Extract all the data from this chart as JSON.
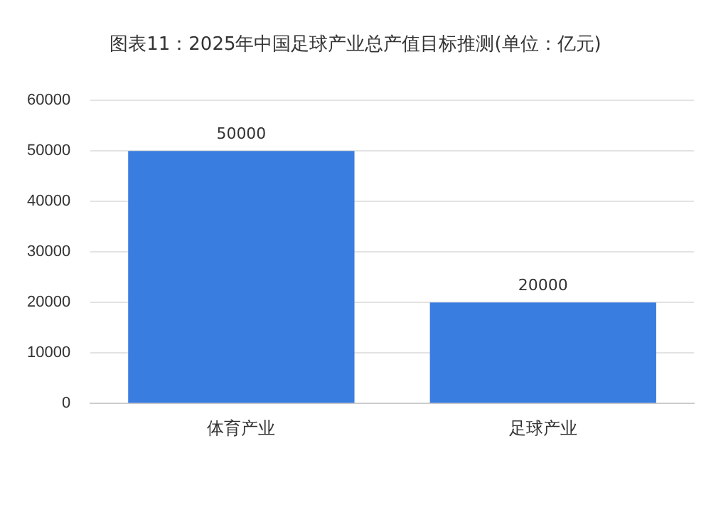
{
  "chart_data": {
    "type": "bar",
    "title": "图表11：2025年中国足球产业总产值目标推测(单位：亿元)",
    "categories": [
      "体育产业",
      "足球产业"
    ],
    "values": [
      50000,
      20000
    ],
    "color": "#3a7de0",
    "ylim": [
      0,
      60000
    ],
    "yticks": [
      0,
      10000,
      20000,
      30000,
      40000,
      50000,
      60000
    ],
    "grid": "y",
    "data_labels": true,
    "legend": false
  }
}
